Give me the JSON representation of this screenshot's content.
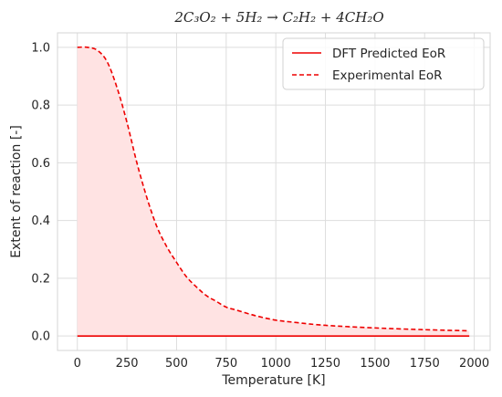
{
  "chart_data": {
    "type": "line",
    "title": "2C₃O₂ + 5H₂ → C₂H₂ + 4CH₂O",
    "xlabel": "Temperature [K]",
    "ylabel": "Extent of reaction [-]",
    "xlim": [
      -100,
      2080
    ],
    "ylim": [
      -0.05,
      1.05
    ],
    "xticks": [
      0,
      250,
      500,
      750,
      1000,
      1250,
      1500,
      1750,
      2000
    ],
    "xtick_labels": [
      "0",
      "250",
      "500",
      "750",
      "1000",
      "1250",
      "1500",
      "1750",
      "2000"
    ],
    "yticks": [
      0.0,
      0.2,
      0.4,
      0.6,
      0.8,
      1.0
    ],
    "ytick_labels": [
      "0.0",
      "0.2",
      "0.4",
      "0.6",
      "0.8",
      "1.0"
    ],
    "grid": true,
    "legend_position": "top-right",
    "series_colors": {
      "line": "#ee0000",
      "fill": "#ffe3e3"
    },
    "series": [
      {
        "name": "DFT Predicted EoR",
        "style": "solid",
        "x": [
          0,
          1975
        ],
        "y": [
          0.0,
          0.0
        ]
      },
      {
        "name": "Experimental EoR",
        "style": "dashed",
        "fill_to_zero": true,
        "x": [
          0,
          50,
          100,
          150,
          200,
          250,
          300,
          350,
          400,
          450,
          500,
          550,
          600,
          650,
          700,
          750,
          800,
          900,
          1000,
          1100,
          1250,
          1500,
          1750,
          1975
        ],
        "y": [
          1.0,
          1.0,
          0.99,
          0.95,
          0.86,
          0.74,
          0.6,
          0.48,
          0.38,
          0.31,
          0.255,
          0.205,
          0.17,
          0.14,
          0.12,
          0.1,
          0.09,
          0.07,
          0.055,
          0.047,
          0.037,
          0.028,
          0.022,
          0.018
        ]
      }
    ]
  }
}
